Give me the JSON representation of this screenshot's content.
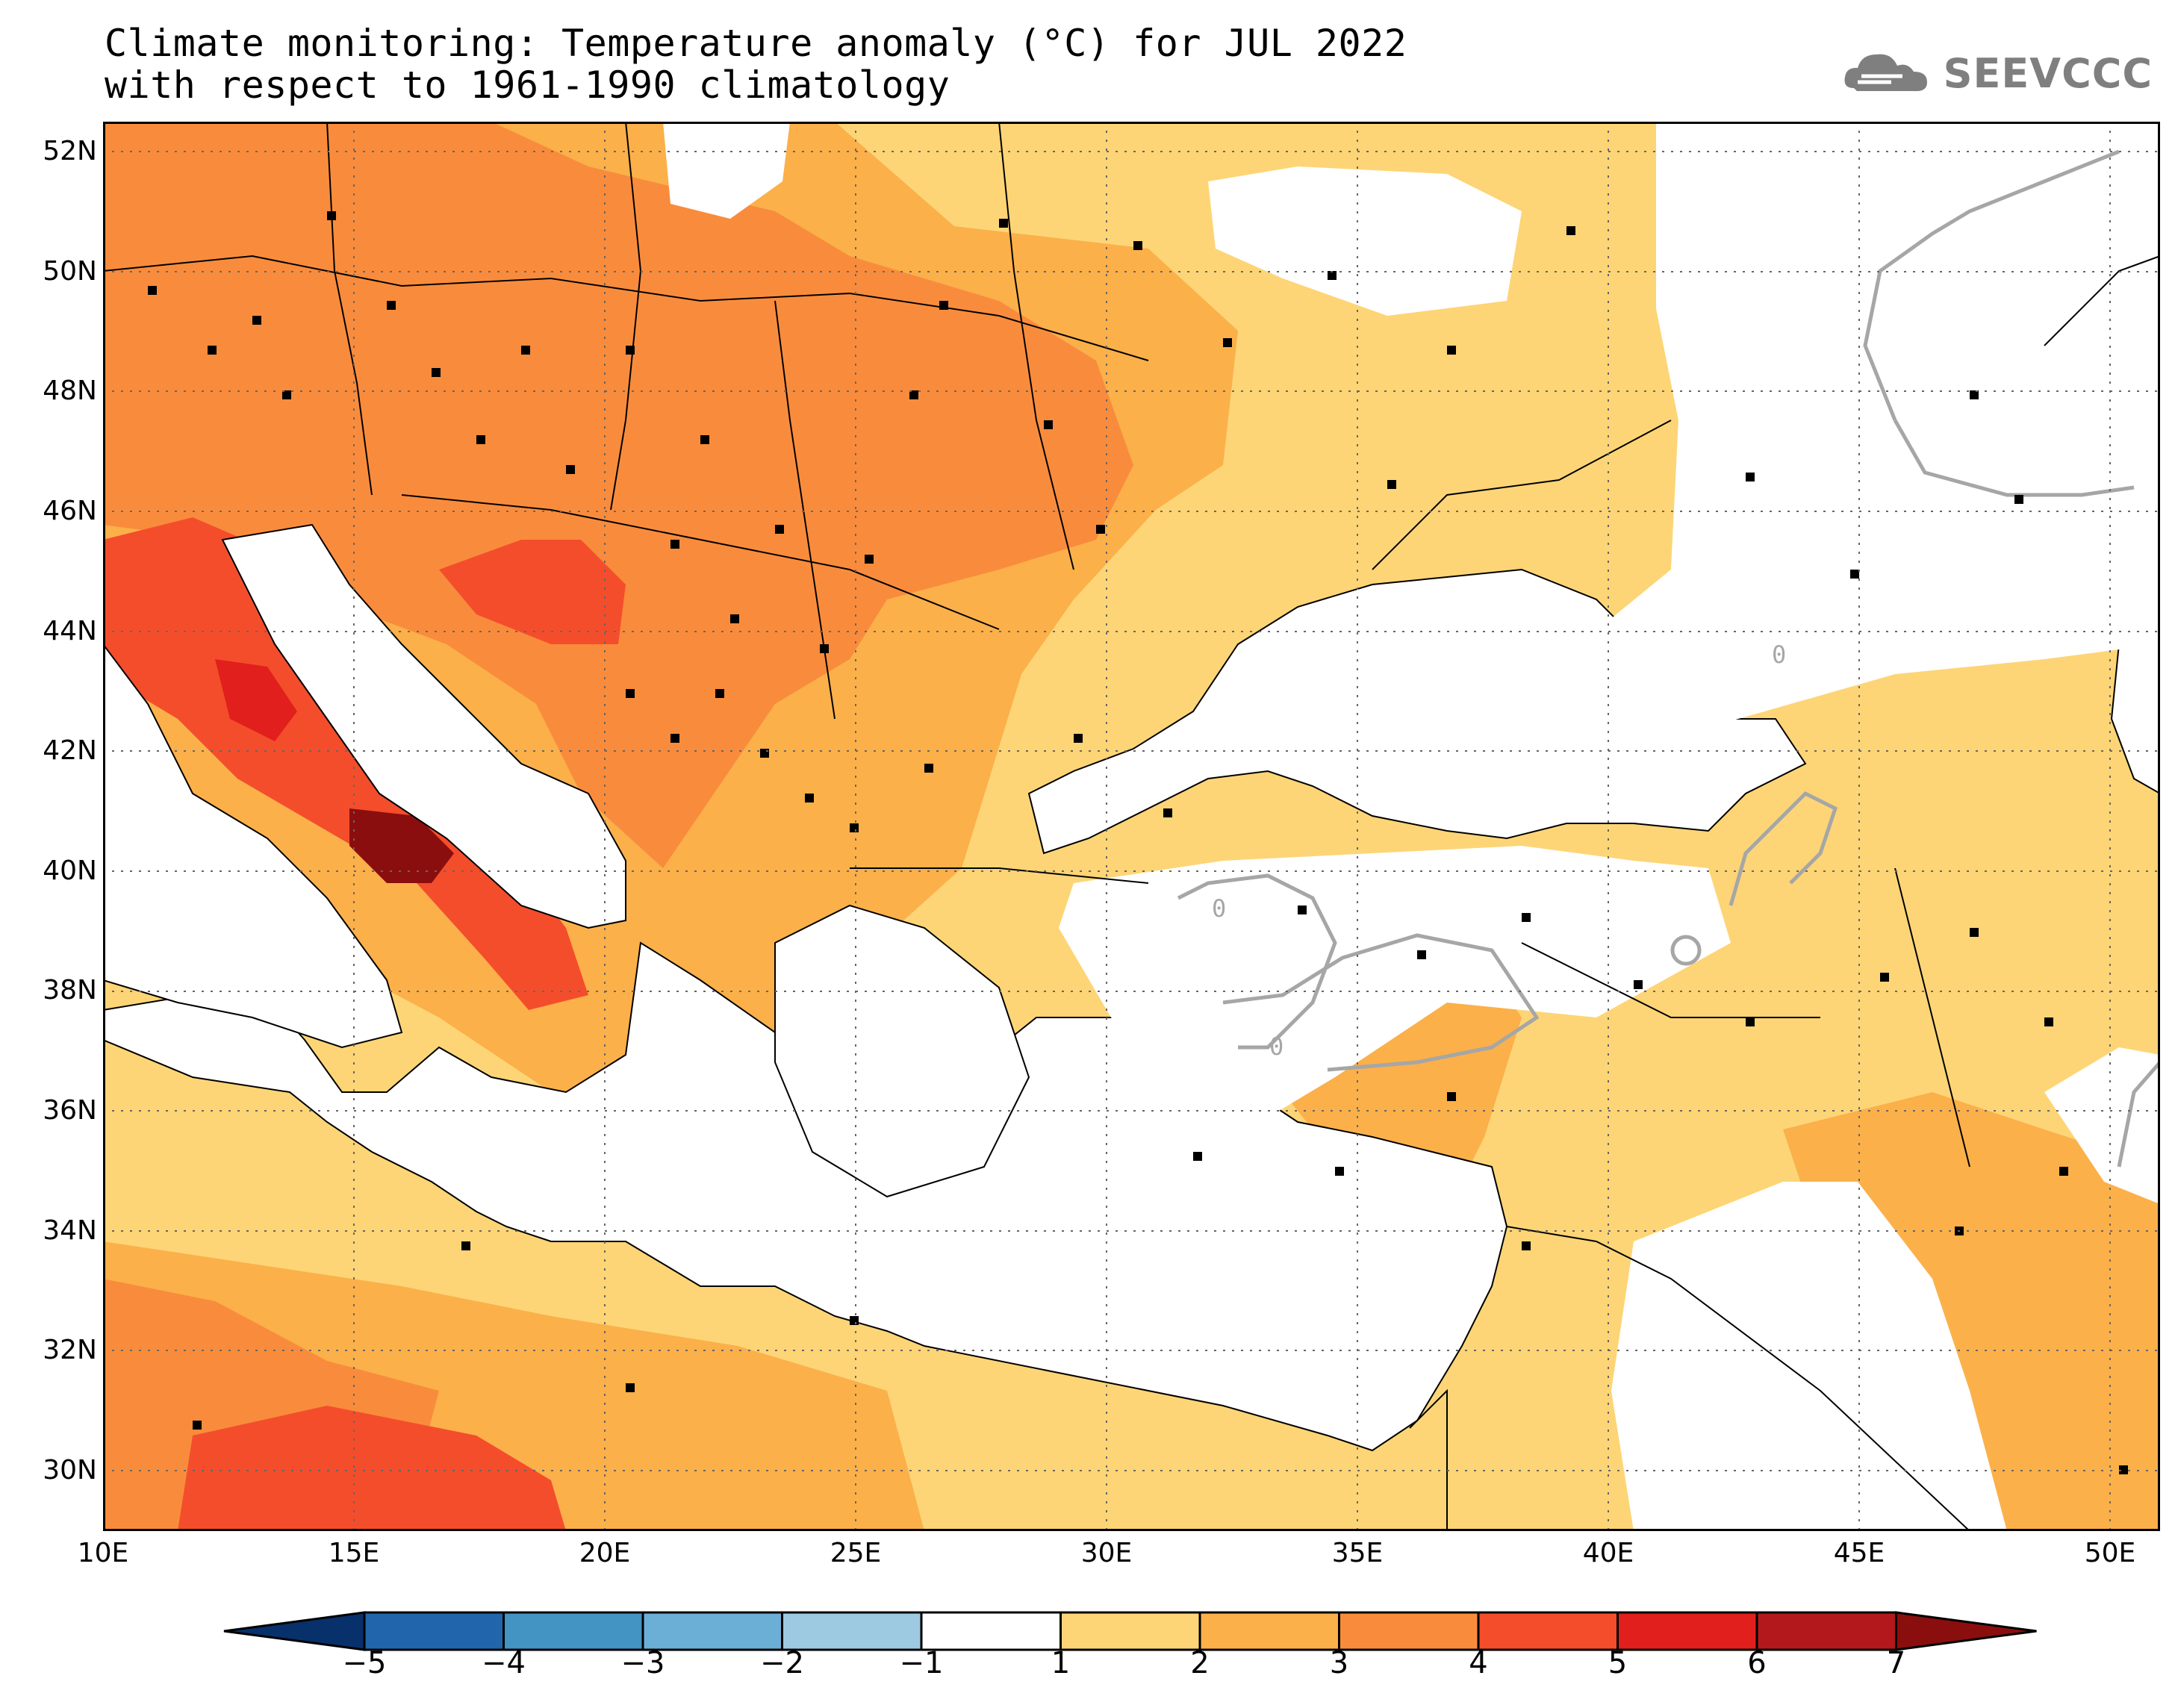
{
  "title": {
    "line1": "Climate monitoring: Temperature anomaly (°C) for JUL 2022",
    "line2": "with respect to 1961-1990 climatology"
  },
  "logo": {
    "icon": "cloud-icon",
    "text": "SEEVCCC"
  },
  "map": {
    "lat_labels": [
      "52N",
      "50N",
      "48N",
      "46N",
      "44N",
      "42N",
      "40N",
      "38N",
      "36N",
      "34N",
      "32N",
      "30N"
    ],
    "lon_labels": [
      "10E",
      "15E",
      "20E",
      "25E",
      "30E",
      "35E",
      "40E",
      "45E",
      "50E"
    ],
    "contour_label": "0",
    "extent": {
      "lon_min": 10,
      "lon_max": 51,
      "lat_min": 29,
      "lat_max": 52.5
    }
  },
  "colorbar": {
    "labels": [
      "-5",
      "-4",
      "-3",
      "-2",
      "-1",
      "1",
      "2",
      "3",
      "4",
      "5",
      "6",
      "7"
    ],
    "colors": [
      "#08306b",
      "#2166ac",
      "#4393c3",
      "#6baed6",
      "#9ecae1",
      "#ffffff",
      "#fdd576",
      "#fbb04a",
      "#f98c3c",
      "#f44d2c",
      "#e11f1c",
      "#b3181c",
      "#8b0e0e"
    ]
  }
}
